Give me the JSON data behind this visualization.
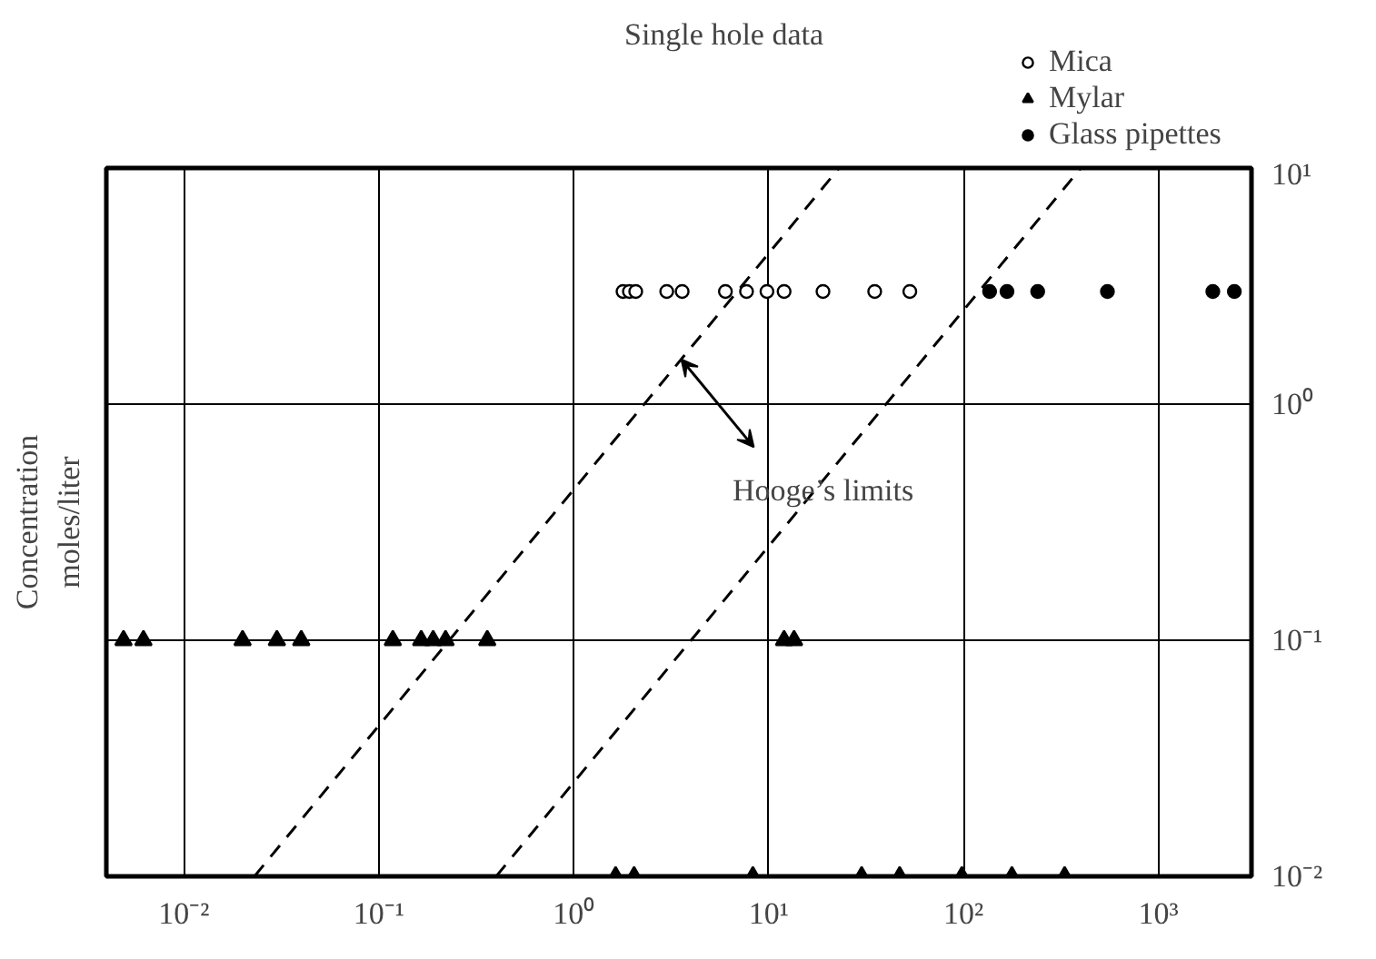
{
  "chart_data": {
    "type": "scatter",
    "title": "Single hole data",
    "ylabel": "Concentration\nmoles/liter",
    "log": "xy",
    "grid": true,
    "legend": "top right",
    "xlim": [
      0.004,
      3000
    ],
    "ylim": [
      0.01,
      10
    ],
    "xticks": [
      {
        "value": 0.01,
        "label": "10⁻²"
      },
      {
        "value": 0.1,
        "label": "10⁻¹"
      },
      {
        "value": 1,
        "label": "10⁰"
      },
      {
        "value": 10,
        "label": "10¹"
      },
      {
        "value": 100,
        "label": "10²"
      },
      {
        "value": 1000,
        "label": "10³"
      }
    ],
    "yticks": [
      {
        "value": 0.01,
        "label": "10⁻²"
      },
      {
        "value": 0.1,
        "label": "10⁻¹"
      },
      {
        "value": 1,
        "label": "10⁰"
      },
      {
        "value": 10,
        "label": "10¹"
      }
    ],
    "series": [
      {
        "name": "Mica",
        "color": "#000000",
        "marker": "circle_open",
        "x": [
          1.79,
          1.93,
          2.08,
          3.0,
          3.6,
          6.0,
          7.7,
          9.8,
          12,
          19,
          35,
          53
        ],
        "values": [
          3,
          3,
          3,
          3,
          3,
          3,
          3,
          3,
          3,
          3,
          3,
          3
        ]
      },
      {
        "name": "Mylar",
        "color": "#000000",
        "marker": "triangle",
        "x": [
          0.0049,
          0.0062,
          0.02,
          0.03,
          0.04,
          0.118,
          0.165,
          0.19,
          0.22,
          0.36,
          12,
          13.5,
          1.64,
          2.04,
          8.3,
          30,
          47,
          98,
          177,
          330
        ],
        "values": [
          0.1,
          0.1,
          0.1,
          0.1,
          0.1,
          0.1,
          0.1,
          0.1,
          0.1,
          0.1,
          0.1,
          0.1,
          0.01,
          0.01,
          0.01,
          0.01,
          0.01,
          0.01,
          0.01,
          0.01
        ]
      },
      {
        "name": "Glass pipettes",
        "color": "#000000",
        "marker": "circle",
        "x": [
          136,
          167,
          240,
          547,
          1900,
          2450
        ],
        "values": [
          3,
          3,
          3,
          3,
          3,
          3
        ]
      },
      {
        "type": "line",
        "color": "#000000",
        "line_style": "dashed",
        "x": [
          0.023,
          23
        ],
        "values": [
          0.01,
          10
        ]
      },
      {
        "type": "line",
        "color": "#000000",
        "line_style": "dashed",
        "x": [
          0.4,
          400
        ],
        "values": [
          0.01,
          10
        ]
      }
    ],
    "annotations": [
      {
        "text": "Hooge’s limits",
        "x": 19,
        "y": 0.43
      }
    ]
  }
}
